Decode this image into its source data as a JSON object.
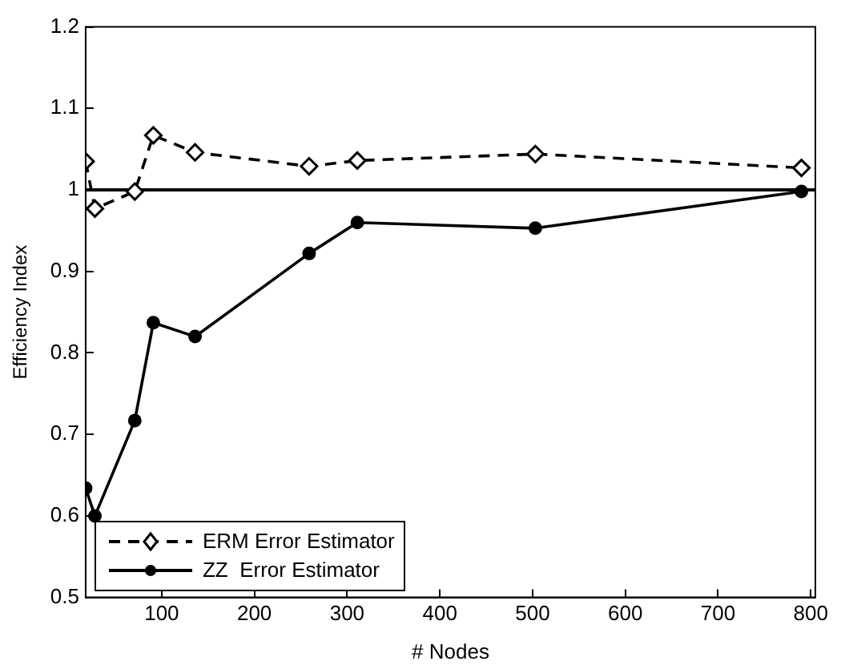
{
  "chart_data": {
    "type": "line",
    "xlabel": "# Nodes",
    "ylabel": "Efficiency Index",
    "xlim": [
      18,
      805
    ],
    "xticks": [
      100,
      200,
      300,
      400,
      500,
      600,
      700,
      800
    ],
    "ylim": [
      0.5,
      1.2
    ],
    "yticks": [
      0.5,
      0.6,
      0.7,
      0.8,
      0.9,
      1,
      1.1,
      1.2
    ],
    "grid": false,
    "legend": "bottom left",
    "ref_lines": [
      {
        "axis": "y",
        "value": 1,
        "color": "#000000",
        "line_style": "solid"
      }
    ],
    "x": [
      18,
      28,
      71,
      91,
      136,
      259,
      311,
      503,
      790
    ],
    "series": [
      {
        "name": "ERM Error Estimator",
        "color": "#000000",
        "marker": "diamond",
        "line_style": "dashed",
        "values": [
          1.035,
          0.977,
          0.998,
          1.067,
          1.046,
          1.029,
          1.036,
          1.044,
          1.027
        ]
      },
      {
        "name": "ZZ  Error Estimator",
        "color": "#000000",
        "marker": "circle",
        "line_style": "solid",
        "values": [
          0.634,
          0.6,
          0.717,
          0.837,
          0.82,
          0.922,
          0.96,
          0.953,
          0.998
        ]
      }
    ]
  }
}
